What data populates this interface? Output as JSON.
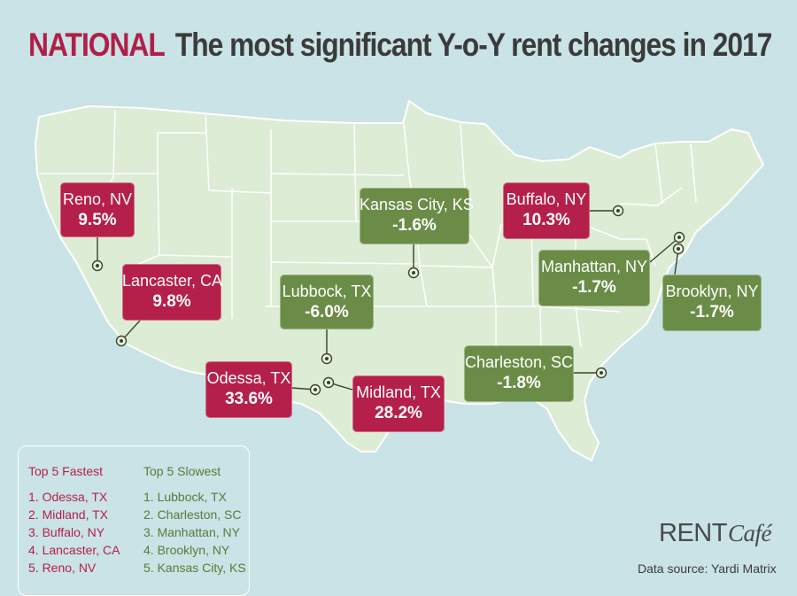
{
  "header": {
    "lead": "NATIONAL",
    "title": "The most significant Y-o-Y rent changes in 2017"
  },
  "colors": {
    "background": "#c9e3e6",
    "land": "#ddecd5",
    "borders": "#ffffff",
    "positive": "#b5204a",
    "negative": "#6b8c47"
  },
  "markers": [
    {
      "city": "Reno, NV",
      "value": "9.5%",
      "trend": "positive"
    },
    {
      "city": "Lancaster, CA",
      "value": "9.8%",
      "trend": "positive"
    },
    {
      "city": "Lubbock, TX",
      "value": "-6.0%",
      "trend": "negative"
    },
    {
      "city": "Kansas City, KS",
      "value": "-1.6%",
      "trend": "negative"
    },
    {
      "city": "Buffalo, NY",
      "value": "10.3%",
      "trend": "positive"
    },
    {
      "city": "Manhattan, NY",
      "value": "-1.7%",
      "trend": "negative"
    },
    {
      "city": "Brooklyn, NY",
      "value": "-1.7%",
      "trend": "negative"
    },
    {
      "city": "Odessa, TX",
      "value": "33.6%",
      "trend": "positive"
    },
    {
      "city": "Midland, TX",
      "value": "28.2%",
      "trend": "positive"
    },
    {
      "city": "Charleston, SC",
      "value": "-1.8%",
      "trend": "negative"
    }
  ],
  "legend": {
    "fastest": {
      "title": "Top 5 Fastest",
      "items": [
        "1. Odessa, TX",
        "2. Midland, TX",
        "3. Buffalo, NY",
        "4. Lancaster, CA",
        "5. Reno, NV"
      ]
    },
    "slowest": {
      "title": "Top 5 Slowest",
      "items": [
        "1. Lubbock, TX",
        "2. Charleston, SC",
        "3. Manhattan, NY",
        "4. Brooklyn, NY",
        "5. Kansas City, KS"
      ]
    }
  },
  "brand": {
    "part1": "RENT",
    "part2": "Café"
  },
  "source": "Data source:  Yardi Matrix"
}
